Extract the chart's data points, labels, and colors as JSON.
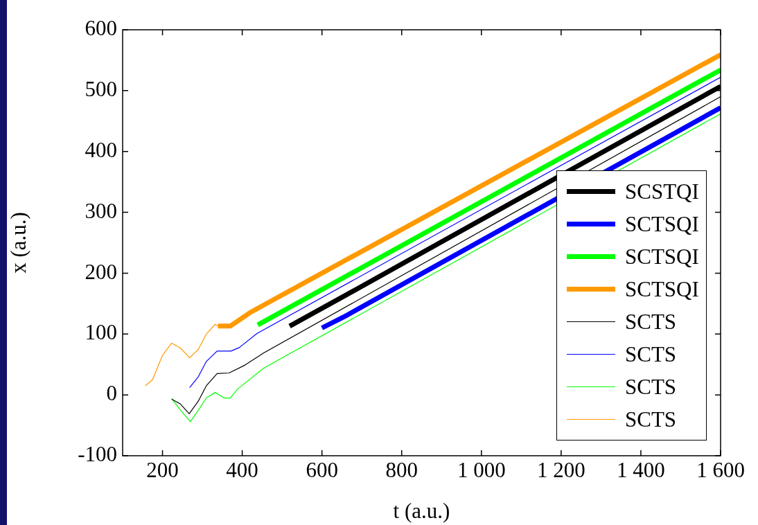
{
  "chart_data": {
    "type": "line",
    "xlabel": "t (a.u.)",
    "ylabel": "x (a.u.)",
    "xlim": [
      100,
      1600
    ],
    "ylim": [
      -100,
      600
    ],
    "xticks": [
      200,
      400,
      600,
      800,
      {
        "value": 1000,
        "label": "1 000"
      },
      {
        "value": 1200,
        "label": "1 200"
      },
      {
        "value": 1400,
        "label": "1 400"
      },
      {
        "value": 1600,
        "label": "1 600"
      }
    ],
    "yticks": [
      -100,
      0,
      100,
      200,
      300,
      400,
      500,
      600
    ],
    "grid": false,
    "legend": "bottom right",
    "marker": "none",
    "line_style": "solid",
    "series": [
      {
        "name": "SCSTQI",
        "color": "#000000",
        "x": [
          519,
          663,
          1600
        ],
        "values": [
          113,
          165,
          507
        ]
      },
      {
        "name": "SCTSQI",
        "color": "#0000ff",
        "x": [
          600,
          663,
          1600
        ],
        "values": [
          110,
          131,
          472
        ]
      },
      {
        "name": "SCTSQI",
        "color": "#00ff00",
        "x": [
          439,
          1600
        ],
        "values": [
          115,
          534
        ]
      },
      {
        "name": "SCTSQI",
        "color": "#ff9900",
        "x": [
          339,
          370,
          419,
          1600
        ],
        "values": [
          113,
          113,
          135,
          559
        ]
      },
      {
        "name": "SCTS",
        "color": "#000000",
        "x": [
          223,
          245,
          267,
          290,
          310,
          337,
          367,
          407,
          454,
          1600
        ],
        "values": [
          -7,
          -15,
          -31,
          -10,
          15,
          35,
          36,
          49,
          69,
          490
        ]
      },
      {
        "name": "SCTS",
        "color": "#0000ff",
        "x": [
          268,
          290,
          310,
          337,
          372,
          393,
          437,
          1600
        ],
        "values": [
          12,
          30,
          55,
          72,
          72,
          78,
          101,
          522
        ]
      },
      {
        "name": "SCTS",
        "color": "#00ff00",
        "x": [
          223,
          245,
          270,
          290,
          310,
          332,
          354,
          370,
          389,
          454,
          1600
        ],
        "values": [
          -6,
          -25,
          -44,
          -25,
          -5,
          4,
          -5,
          -5,
          10,
          44,
          462
        ]
      },
      {
        "name": "SCTS",
        "color": "#ff9900",
        "x": [
          157,
          175,
          200,
          223,
          245,
          268,
          290,
          310,
          332,
          339
        ],
        "values": [
          15,
          25,
          65,
          85,
          77,
          61,
          75,
          100,
          116,
          113
        ]
      }
    ]
  }
}
